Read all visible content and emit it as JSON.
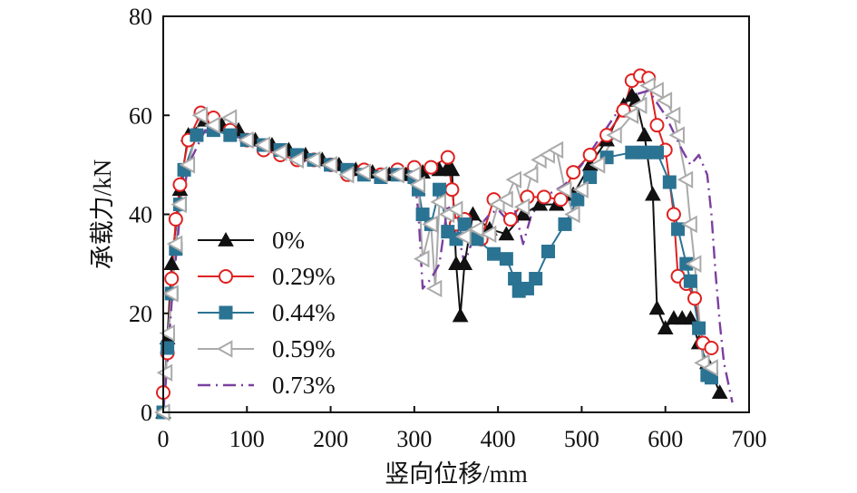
{
  "chart_data": {
    "type": "line",
    "title": "",
    "xlabel": "竖向位移/mm",
    "ylabel": "承载力/kN",
    "xlim": [
      0,
      700
    ],
    "ylim": [
      0,
      80
    ],
    "xticks": [
      0,
      100,
      200,
      300,
      400,
      500,
      600,
      700
    ],
    "yticks": [
      0,
      20,
      40,
      60,
      80
    ],
    "grid": false,
    "legend_position": "center-left",
    "series": [
      {
        "name": "0%",
        "color": "#111111",
        "marker": "triangle-up",
        "dash": "solid",
        "x": [
          0,
          5,
          10,
          20,
          30,
          50,
          70,
          90,
          110,
          130,
          150,
          170,
          190,
          210,
          230,
          250,
          270,
          290,
          310,
          330,
          340,
          345,
          350,
          355,
          360,
          370,
          390,
          410,
          430,
          450,
          470,
          490,
          510,
          530,
          550,
          560,
          565,
          575,
          585,
          590,
          600,
          610,
          620,
          630,
          640,
          650,
          665
        ],
        "y": [
          0,
          15,
          30,
          45,
          56,
          59,
          58,
          57,
          55,
          54,
          53,
          52,
          51,
          50,
          49,
          48.5,
          48,
          48,
          48.5,
          49,
          49.5,
          49,
          30,
          19.5,
          30,
          40,
          37,
          36,
          40,
          42,
          42,
          44,
          50,
          55,
          62,
          64,
          63,
          56,
          44,
          21,
          17,
          19,
          19,
          19,
          14,
          10,
          4
        ]
      },
      {
        "name": "0.29%",
        "color": "#e02020",
        "marker": "circle-open",
        "dash": "solid",
        "x": [
          0,
          5,
          10,
          15,
          20,
          30,
          45,
          60,
          80,
          100,
          120,
          140,
          160,
          180,
          200,
          220,
          240,
          260,
          280,
          300,
          320,
          340,
          345,
          350,
          360,
          380,
          395,
          415,
          435,
          455,
          475,
          490,
          510,
          530,
          550,
          560,
          570,
          580,
          590,
          600,
          610,
          615,
          625,
          635,
          645,
          655
        ],
        "y": [
          4,
          12,
          27,
          39,
          46,
          55,
          60.5,
          59.5,
          57,
          55,
          53,
          52,
          51,
          51,
          50,
          48,
          49,
          48,
          49,
          49.5,
          49.5,
          51.5,
          45,
          38,
          39,
          35,
          43,
          39,
          43.5,
          43.5,
          43,
          48.5,
          52,
          56,
          61,
          67,
          68,
          67.5,
          58,
          53,
          40,
          27.5,
          26,
          23,
          14,
          13
        ]
      },
      {
        "name": "0.44%",
        "color": "#2b7393",
        "marker": "square",
        "dash": "solid",
        "x": [
          0,
          5,
          10,
          15,
          20,
          25,
          40,
          60,
          80,
          100,
          120,
          140,
          160,
          180,
          200,
          220,
          240,
          260,
          280,
          300,
          305,
          310,
          320,
          330,
          340,
          350,
          360,
          375,
          395,
          410,
          420,
          425,
          435,
          445,
          460,
          480,
          495,
          510,
          530,
          560,
          575,
          590,
          605,
          615,
          625,
          630,
          640,
          650,
          655
        ],
        "y": [
          0,
          13,
          24,
          33,
          42,
          49,
          56,
          57,
          56,
          55,
          54,
          53,
          52,
          51,
          50,
          49,
          48,
          47.5,
          48,
          47.5,
          45,
          40,
          38,
          45,
          36.5,
          35,
          38,
          35,
          32,
          31,
          27,
          24.5,
          25,
          27,
          32.5,
          38,
          43,
          47.5,
          51.5,
          52.5,
          52.5,
          52.5,
          46.5,
          37,
          30,
          26.5,
          17,
          7.5,
          7
        ]
      },
      {
        "name": "0.59%",
        "color": "#aaaaaa",
        "marker": "triangle-left-open",
        "dash": "solid",
        "x": [
          0,
          3,
          6,
          10,
          15,
          20,
          30,
          45,
          60,
          80,
          100,
          120,
          140,
          160,
          180,
          200,
          220,
          240,
          260,
          280,
          300,
          305,
          310,
          320,
          325,
          330,
          340,
          350,
          360,
          375,
          390,
          400,
          410,
          420,
          430,
          440,
          450,
          460,
          470,
          480,
          490,
          500,
          520,
          540,
          560,
          570,
          580,
          590,
          600,
          610,
          615,
          625,
          630,
          635,
          645,
          655
        ],
        "y": [
          0,
          8,
          16,
          24,
          34,
          42,
          50,
          60,
          58,
          59.5,
          55,
          54,
          52.5,
          51,
          51,
          50,
          48,
          48.5,
          48,
          48,
          48,
          46,
          31,
          38,
          25,
          42.5,
          40,
          41,
          35.5,
          37,
          36,
          42,
          43,
          47,
          41.5,
          48,
          51,
          52,
          53,
          45,
          40,
          45,
          50,
          56,
          60,
          62,
          66,
          65,
          63,
          60,
          56,
          47,
          38,
          30,
          10,
          9
        ]
      },
      {
        "name": "0.73%",
        "color": "#7b3fa0",
        "marker": "none",
        "dash": "dashdot",
        "x": [
          0,
          5,
          10,
          20,
          30,
          50,
          70,
          100,
          130,
          160,
          190,
          220,
          250,
          280,
          300,
          305,
          310,
          320,
          330,
          340,
          350,
          360,
          370,
          380,
          390,
          400,
          410,
          420,
          430,
          440,
          460,
          480,
          500,
          520,
          540,
          560,
          580,
          600,
          620,
          630,
          640,
          650,
          655,
          660,
          665,
          670,
          680
        ],
        "y": [
          0,
          10,
          22,
          40,
          50,
          57,
          57,
          55,
          53,
          51,
          50,
          48.5,
          48,
          48,
          48,
          40,
          25,
          27,
          30,
          42,
          38,
          30,
          35,
          38,
          40,
          41,
          39,
          41,
          34,
          40,
          44,
          46,
          50,
          55,
          60,
          64,
          65,
          60,
          53,
          50,
          52,
          48,
          40,
          28,
          18,
          10,
          2
        ]
      }
    ]
  }
}
